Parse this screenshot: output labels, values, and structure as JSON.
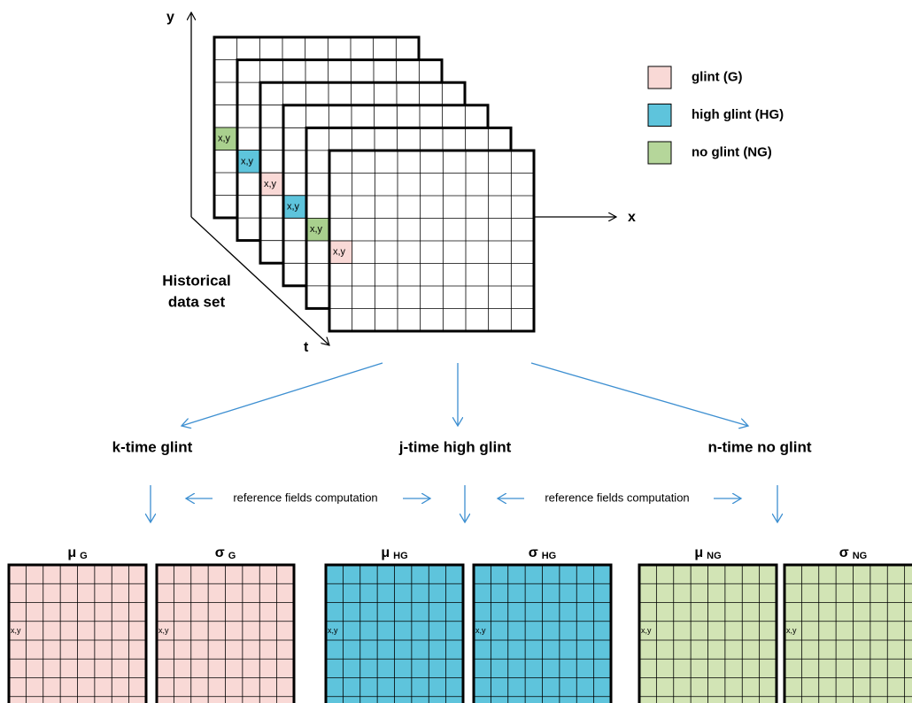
{
  "axes": {
    "y": "y",
    "x": "x",
    "t": "t"
  },
  "dataset_label": [
    "Historical",
    "data set"
  ],
  "legend": [
    {
      "label": "glint (G)",
      "color": "#f9d9d6"
    },
    {
      "label": "high glint (HG)",
      "color": "#5ec4dc"
    },
    {
      "label": "no glint (NG)",
      "color": "#b5d69a"
    }
  ],
  "frames": [
    {
      "cell": "x,y",
      "color": "#a9d08e"
    },
    {
      "cell": "x,y",
      "color": "#5ec4dc"
    },
    {
      "cell": "x,y",
      "color": "#f9d9d6"
    },
    {
      "cell": "x,y",
      "color": "#5ec4dc"
    },
    {
      "cell": "x,y",
      "color": "#a9d08e"
    },
    {
      "cell": "x,y",
      "color": "#f9d9d6"
    }
  ],
  "branches": [
    {
      "title": "k-time glint",
      "color": "#f9d9d6",
      "fields": [
        {
          "symbol": "μ",
          "subscript": "G",
          "cell": "x,y"
        },
        {
          "symbol": "σ",
          "subscript": "G",
          "cell": "x,y"
        }
      ]
    },
    {
      "title": "j-time high glint",
      "color": "#5ec4dc",
      "fields": [
        {
          "symbol": "μ",
          "subscript": "HG",
          "cell": "x,y"
        },
        {
          "symbol": "σ",
          "subscript": "HG",
          "cell": "x,y"
        }
      ]
    },
    {
      "title": "n-time no glint",
      "color": "#d2e4b5",
      "fields": [
        {
          "symbol": "μ",
          "subscript": "NG",
          "cell": "x,y"
        },
        {
          "symbol": "σ",
          "subscript": "NG",
          "cell": "x,y"
        }
      ]
    }
  ],
  "reference_labels": [
    "reference fields computation",
    "reference fields computation"
  ]
}
